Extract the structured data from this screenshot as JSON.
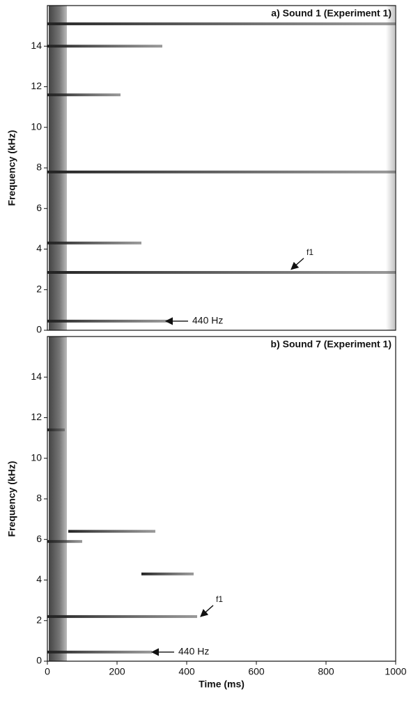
{
  "chart_data": [
    {
      "type": "spectrogram",
      "title": "a) Sound 1 (Experiment 1)",
      "ylabel": "Frequency (kHz)",
      "xlim": [
        0,
        1000
      ],
      "ylim": [
        0,
        16
      ],
      "yticks": [
        0,
        2,
        4,
        6,
        8,
        10,
        12,
        14
      ],
      "bands": [
        {
          "freq": 15.1,
          "start": 0,
          "end": 1000
        },
        {
          "freq": 14.0,
          "start": 0,
          "end": 330
        },
        {
          "freq": 11.6,
          "start": 0,
          "end": 210
        },
        {
          "freq": 7.8,
          "start": 0,
          "end": 1000
        },
        {
          "freq": 4.3,
          "start": 0,
          "end": 270
        },
        {
          "freq": 2.85,
          "start": 0,
          "end": 1000
        },
        {
          "freq": 0.45,
          "start": 0,
          "end": 350
        }
      ],
      "annotations": [
        {
          "text": "f1",
          "x": 700,
          "y": 3.0,
          "arrow": "diagonal"
        },
        {
          "text": "440 Hz",
          "x": 340,
          "y": 0.45,
          "arrow": "left"
        }
      ]
    },
    {
      "type": "spectrogram",
      "title": "b) Sound 7 (Experiment 1)",
      "ylabel": "Frequency (kHz)",
      "xlabel": "Time (ms)",
      "xlim": [
        0,
        1000
      ],
      "ylim": [
        0,
        16
      ],
      "yticks": [
        0,
        2,
        4,
        6,
        8,
        10,
        12,
        14
      ],
      "xticks": [
        0,
        200,
        400,
        600,
        800,
        1000
      ],
      "bands": [
        {
          "freq": 11.4,
          "start": 0,
          "end": 50
        },
        {
          "freq": 6.4,
          "start": 60,
          "end": 310
        },
        {
          "freq": 5.9,
          "start": 0,
          "end": 100
        },
        {
          "freq": 4.3,
          "start": 270,
          "end": 420
        },
        {
          "freq": 2.2,
          "start": 0,
          "end": 430
        },
        {
          "freq": 0.45,
          "start": 0,
          "end": 300
        }
      ],
      "annotations": [
        {
          "text": "f1",
          "x": 440,
          "y": 2.2,
          "arrow": "diagonal"
        },
        {
          "text": "440 Hz",
          "x": 300,
          "y": 0.45,
          "arrow": "left"
        }
      ]
    }
  ]
}
